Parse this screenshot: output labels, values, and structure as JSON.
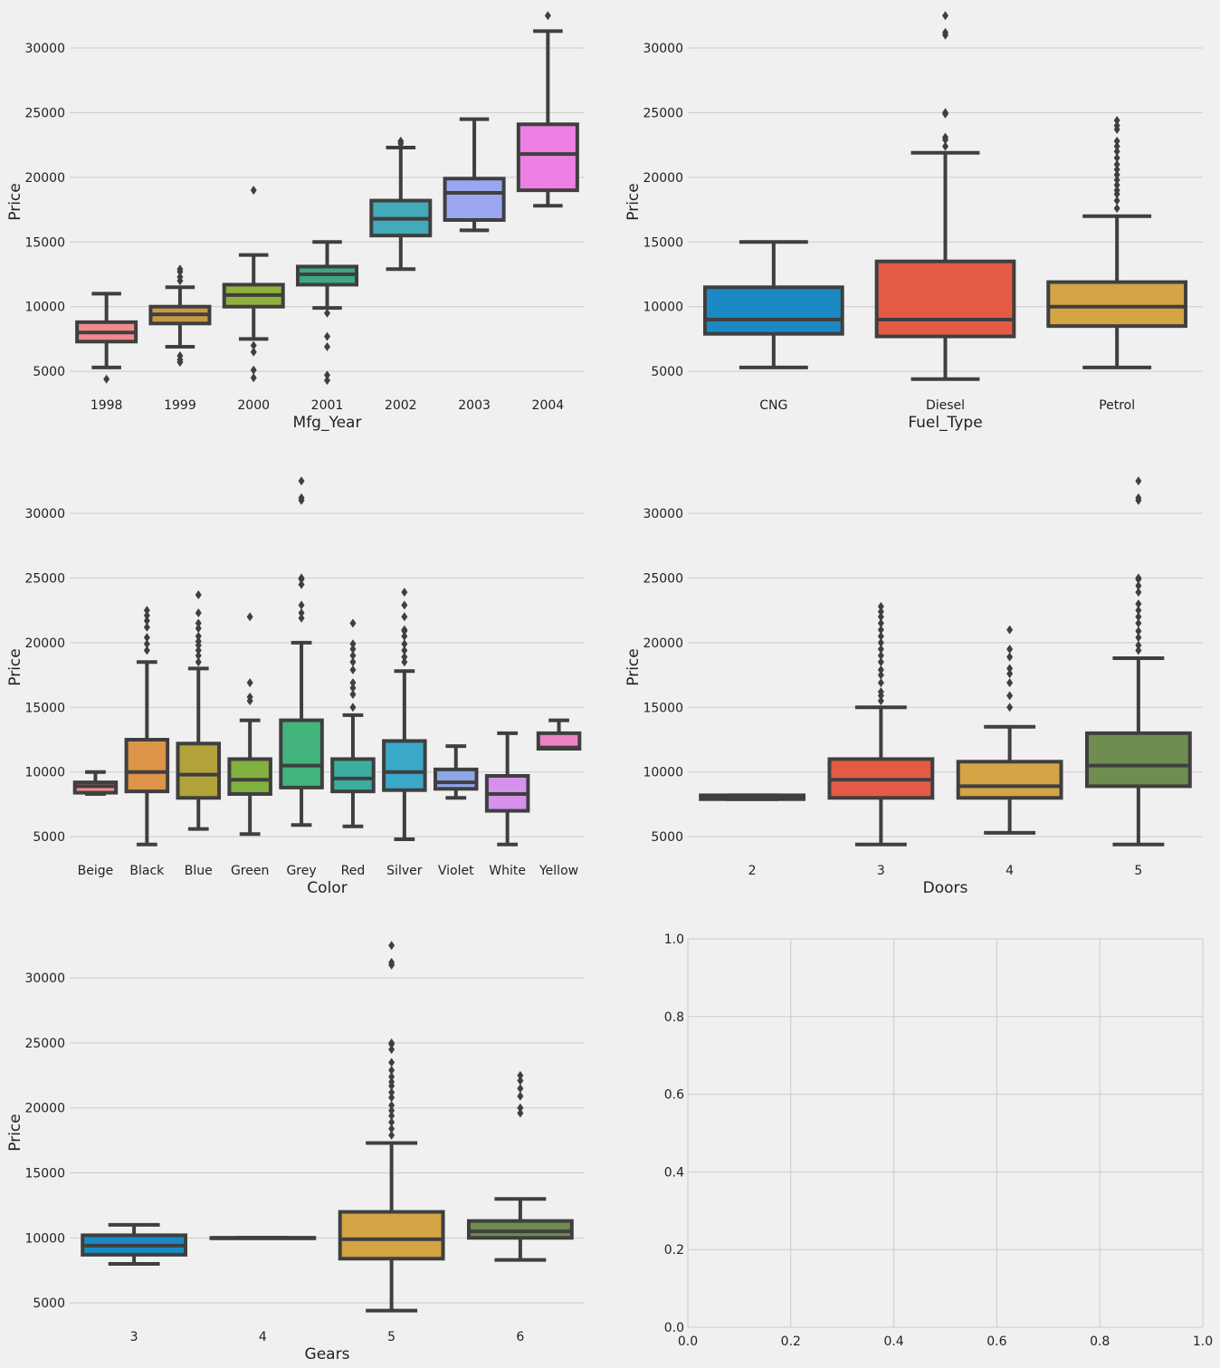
{
  "chart_data": [
    {
      "type": "box",
      "xlabel": "Mfg_Year",
      "ylabel": "Price",
      "ylim": [
        3400,
        32800
      ],
      "yticks": [
        5000,
        10000,
        15000,
        20000,
        25000,
        30000
      ],
      "grid": "horizontal",
      "categories": [
        "1998",
        "1999",
        "2000",
        "2001",
        "2002",
        "2003",
        "2004"
      ],
      "colors": [
        "#f08a8e",
        "#c79a41",
        "#8fb03a",
        "#3da783",
        "#42aab8",
        "#9aa6ee",
        "#ee7fe3"
      ],
      "boxes": [
        {
          "whislo": 5300,
          "q1": 7300,
          "med": 8000,
          "q3": 8800,
          "whishi": 11000,
          "fliers": [
            4400
          ]
        },
        {
          "whislo": 6900,
          "q1": 8700,
          "med": 9400,
          "q3": 10000,
          "whishi": 11500,
          "fliers": [
            12000,
            12300,
            12700,
            12900,
            6200,
            5900,
            5700
          ]
        },
        {
          "whislo": 7500,
          "q1": 10000,
          "med": 10900,
          "q3": 11700,
          "whishi": 14000,
          "fliers": [
            19000,
            7000,
            6500,
            5100,
            4500
          ]
        },
        {
          "whislo": 9900,
          "q1": 11700,
          "med": 12500,
          "q3": 13100,
          "whishi": 15000,
          "fliers": [
            9500,
            7700,
            6900,
            4700,
            4300
          ]
        },
        {
          "whislo": 12900,
          "q1": 15500,
          "med": 16800,
          "q3": 18200,
          "whishi": 22300,
          "fliers": [
            22600,
            22800
          ]
        },
        {
          "whislo": 15900,
          "q1": 16700,
          "med": 18800,
          "q3": 19900,
          "whishi": 24500,
          "fliers": []
        },
        {
          "whislo": 17800,
          "q1": 19000,
          "med": 21800,
          "q3": 24100,
          "whishi": 31300,
          "fliers": [
            32500
          ]
        }
      ]
    },
    {
      "type": "box",
      "xlabel": "Fuel_Type",
      "ylabel": "Price",
      "ylim": [
        3400,
        32800
      ],
      "yticks": [
        5000,
        10000,
        15000,
        20000,
        25000,
        30000
      ],
      "grid": "horizontal",
      "categories": [
        "CNG",
        "Diesel",
        "Petrol"
      ],
      "colors": [
        "#1b8ac4",
        "#e45b45",
        "#d4a445"
      ],
      "boxes": [
        {
          "whislo": 5300,
          "q1": 7900,
          "med": 9000,
          "q3": 11500,
          "whishi": 15000,
          "fliers": []
        },
        {
          "whislo": 4400,
          "q1": 7700,
          "med": 9000,
          "q3": 13500,
          "whishi": 21900,
          "fliers": [
            22400,
            22900,
            23100,
            24900,
            25000,
            31000,
            31200,
            32500
          ]
        },
        {
          "whislo": 5300,
          "q1": 8500,
          "med": 10000,
          "q3": 11900,
          "whishi": 17000,
          "fliers": [
            17600,
            18200,
            18700,
            19000,
            19400,
            19800,
            20200,
            20600,
            21000,
            21500,
            22000,
            22400,
            22800,
            23700,
            24000,
            24400
          ]
        }
      ]
    },
    {
      "type": "box",
      "xlabel": "Color",
      "ylabel": "Price",
      "ylim": [
        3400,
        32800
      ],
      "yticks": [
        5000,
        10000,
        15000,
        20000,
        25000,
        30000
      ],
      "grid": "horizontal",
      "categories": [
        "Beige",
        "Black",
        "Blue",
        "Green",
        "Grey",
        "Red",
        "Silver",
        "Violet",
        "White",
        "Yellow"
      ],
      "colors": [
        "#f08a8e",
        "#dc9448",
        "#b1a33a",
        "#80b03e",
        "#44b47d",
        "#3cada0",
        "#3aa8c8",
        "#8ea5ea",
        "#d591ec",
        "#ee82c3"
      ],
      "boxes": [
        {
          "whislo": 8300,
          "q1": 8400,
          "med": 8900,
          "q3": 9200,
          "whishi": 10000,
          "fliers": []
        },
        {
          "whislo": 4400,
          "q1": 8500,
          "med": 10000,
          "q3": 12500,
          "whishi": 18500,
          "fliers": [
            19400,
            19900,
            20400,
            21200,
            21700,
            22100,
            22500
          ]
        },
        {
          "whislo": 5600,
          "q1": 8000,
          "med": 9800,
          "q3": 12200,
          "whishi": 18000,
          "fliers": [
            18500,
            19000,
            19400,
            19800,
            20100,
            20500,
            21100,
            21500,
            22300,
            23700
          ]
        },
        {
          "whislo": 5200,
          "q1": 8300,
          "med": 9400,
          "q3": 11000,
          "whishi": 14000,
          "fliers": [
            15500,
            15800,
            16900,
            22000
          ]
        },
        {
          "whislo": 5900,
          "q1": 8800,
          "med": 10500,
          "q3": 14000,
          "whishi": 20000,
          "fliers": [
            21900,
            22300,
            22900,
            24500,
            24900,
            25000,
            31000,
            31200,
            32500
          ]
        },
        {
          "whislo": 5800,
          "q1": 8500,
          "med": 9500,
          "q3": 11000,
          "whishi": 14400,
          "fliers": [
            15000,
            16000,
            16500,
            16900,
            17900,
            18500,
            19000,
            19500,
            19900,
            21500
          ]
        },
        {
          "whislo": 4800,
          "q1": 8600,
          "med": 10000,
          "q3": 12400,
          "whishi": 17800,
          "fliers": [
            18500,
            18900,
            19400,
            19900,
            20500,
            20900,
            21000,
            22000,
            22900,
            23900
          ]
        },
        {
          "whislo": 8000,
          "q1": 8700,
          "med": 9200,
          "q3": 10200,
          "whishi": 12000,
          "fliers": []
        },
        {
          "whislo": 4400,
          "q1": 7000,
          "med": 8300,
          "q3": 9700,
          "whishi": 13000,
          "fliers": []
        },
        {
          "whislo": 11800,
          "q1": 11800,
          "med": 11900,
          "q3": 13000,
          "whishi": 14000,
          "fliers": []
        }
      ]
    },
    {
      "type": "box",
      "xlabel": "Doors",
      "ylabel": "Price",
      "ylim": [
        3400,
        32800
      ],
      "yticks": [
        5000,
        10000,
        15000,
        20000,
        25000,
        30000
      ],
      "grid": "horizontal",
      "categories": [
        "2",
        "3",
        "4",
        "5"
      ],
      "colors": [
        "#1b8ac4",
        "#e45b45",
        "#d4a445",
        "#6f8c51"
      ],
      "boxes": [
        {
          "whislo": 7900,
          "q1": 7900,
          "med": 8000,
          "q3": 8200,
          "whishi": 8200,
          "fliers": []
        },
        {
          "whislo": 4400,
          "q1": 8000,
          "med": 9400,
          "q3": 11000,
          "whishi": 15000,
          "fliers": [
            15500,
            15900,
            16200,
            16900,
            17500,
            17900,
            18500,
            19000,
            19500,
            20000,
            20500,
            21000,
            21500,
            22000,
            22400,
            22800
          ]
        },
        {
          "whislo": 5300,
          "q1": 8000,
          "med": 8900,
          "q3": 10800,
          "whishi": 13500,
          "fliers": [
            15000,
            15900,
            16900,
            17600,
            18000,
            18900,
            19500,
            21000
          ]
        },
        {
          "whislo": 4400,
          "q1": 8900,
          "med": 10500,
          "q3": 13000,
          "whishi": 18800,
          "fliers": [
            19400,
            19800,
            20400,
            20900,
            21500,
            22000,
            22500,
            23000,
            23900,
            24400,
            24900,
            25000,
            31000,
            31200,
            32500
          ]
        }
      ]
    },
    {
      "type": "box",
      "xlabel": "Gears",
      "ylabel": "Price",
      "ylim": [
        3400,
        32800
      ],
      "yticks": [
        5000,
        10000,
        15000,
        20000,
        25000,
        30000
      ],
      "grid": "horizontal",
      "categories": [
        "3",
        "4",
        "5",
        "6"
      ],
      "colors": [
        "#1b8ac4",
        "#e45b45",
        "#d4a445",
        "#6f8c51"
      ],
      "boxes": [
        {
          "whislo": 8000,
          "q1": 8700,
          "med": 9400,
          "q3": 10200,
          "whishi": 11000,
          "fliers": []
        },
        {
          "whislo": 10000,
          "q1": 10000,
          "med": 10000,
          "q3": 10000,
          "whishi": 10000,
          "fliers": []
        },
        {
          "whislo": 4400,
          "q1": 8400,
          "med": 9900,
          "q3": 12000,
          "whishi": 17300,
          "fliers": [
            17900,
            18400,
            18900,
            19400,
            19800,
            20200,
            20800,
            21200,
            21700,
            22000,
            22400,
            22900,
            23500,
            24500,
            24900,
            25000,
            31000,
            31200,
            32500
          ]
        },
        {
          "whislo": 8300,
          "q1": 10000,
          "med": 10500,
          "q3": 11300,
          "whishi": 13000,
          "fliers": [
            19600,
            20000,
            20900,
            21500,
            22100,
            22500
          ]
        }
      ]
    },
    {
      "type": "empty",
      "xlim": [
        0,
        1
      ],
      "ylim": [
        0,
        1
      ],
      "xticks": [
        "0.0",
        "0.2",
        "0.4",
        "0.6",
        "0.8",
        "1.0"
      ],
      "yticks": [
        "0.0",
        "0.2",
        "0.4",
        "0.6",
        "0.8",
        "1.0"
      ],
      "grid": "both"
    }
  ]
}
